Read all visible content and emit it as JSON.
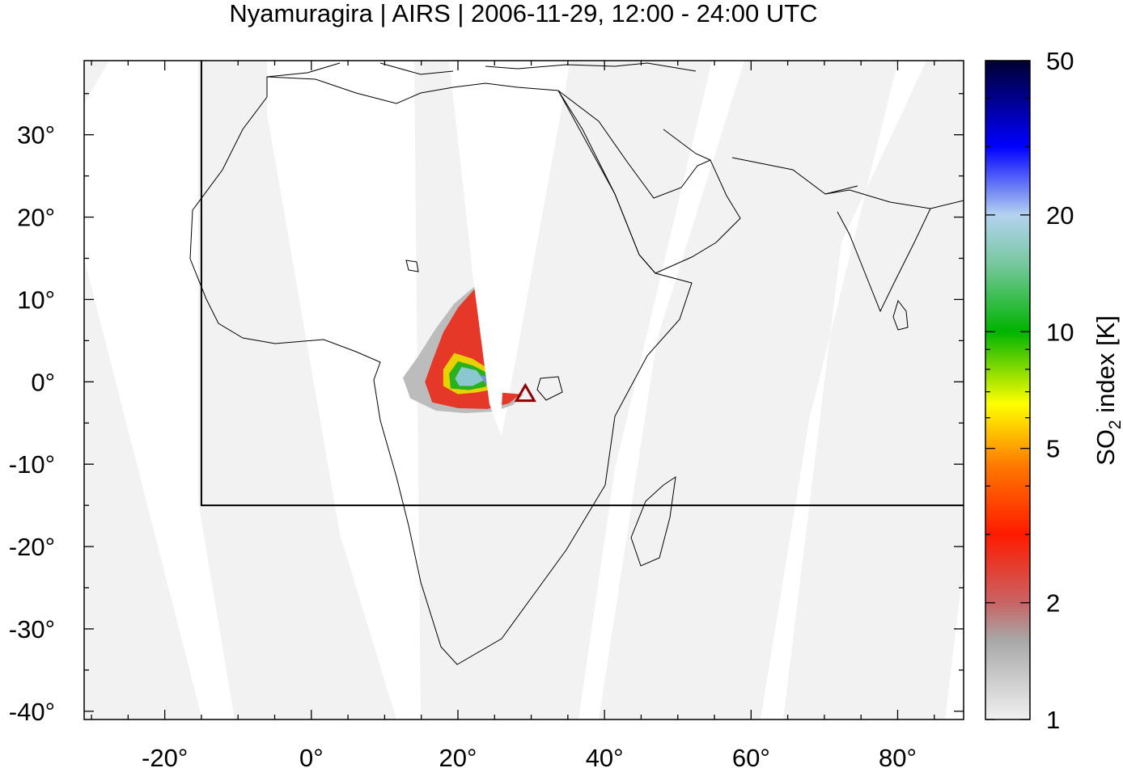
{
  "chart_data": {
    "type": "heatmap",
    "title": "Nyamuragira | AIRS | 2006-11-29, 12:00 - 24:00 UTC",
    "xlim": [
      -31,
      89
    ],
    "ylim": [
      -41,
      39
    ],
    "x_ticks": [
      {
        "value": -20,
        "label": "-20°"
      },
      {
        "value": 0,
        "label": "0°"
      },
      {
        "value": 20,
        "label": "20°"
      },
      {
        "value": 40,
        "label": "40°"
      },
      {
        "value": 60,
        "label": "60°"
      },
      {
        "value": 80,
        "label": "80°"
      }
    ],
    "y_ticks": [
      {
        "value": 30,
        "label": "30°"
      },
      {
        "value": 20,
        "label": "20°"
      },
      {
        "value": 10,
        "label": "10°"
      },
      {
        "value": 0,
        "label": "0°"
      },
      {
        "value": -10,
        "label": "-10°"
      },
      {
        "value": -20,
        "label": "-20°"
      },
      {
        "value": -30,
        "label": "-30°"
      },
      {
        "value": -40,
        "label": "-40°"
      }
    ],
    "volcano": {
      "lon": 29.2,
      "lat": -1.4,
      "marker": "triangle",
      "color": "#8b0000"
    },
    "search_region": {
      "lon_min": -15,
      "lon_max": 89,
      "lat_min": -15,
      "lat_max": 39
    },
    "colorbar": {
      "label_main": "SO",
      "label_sub": "2",
      "label_rest": " index [K]",
      "scale": "log",
      "range": [
        1,
        50
      ],
      "ticks": [
        {
          "value": 1,
          "label": "1"
        },
        {
          "value": 2,
          "label": "2"
        },
        {
          "value": 5,
          "label": "5"
        },
        {
          "value": 10,
          "label": "10"
        },
        {
          "value": 20,
          "label": "20"
        },
        {
          "value": 50,
          "label": "50"
        }
      ],
      "colors": [
        {
          "value": 1,
          "color": "#f0f0f0"
        },
        {
          "value": 1.6,
          "color": "#a8a8a8"
        },
        {
          "value": 2,
          "color": "#c86464"
        },
        {
          "value": 3,
          "color": "#ff1a00"
        },
        {
          "value": 4.5,
          "color": "#ff7800"
        },
        {
          "value": 6.5,
          "color": "#ffff00"
        },
        {
          "value": 10,
          "color": "#00b400"
        },
        {
          "value": 15,
          "color": "#78c8a0"
        },
        {
          "value": 20,
          "color": "#b4d2f0"
        },
        {
          "value": 30,
          "color": "#0000ff"
        },
        {
          "value": 50,
          "color": "#000032"
        }
      ]
    },
    "plume_contours": [
      {
        "so2": 1.5,
        "color": "#b8b8b8",
        "points": [
          [
            23.5,
            12.5
          ],
          [
            19.5,
            9.5
          ],
          [
            17.0,
            6.5
          ],
          [
            14.5,
            3.0
          ],
          [
            12.5,
            0.5
          ],
          [
            13.5,
            -2.0
          ],
          [
            17.0,
            -3.5
          ],
          [
            21.0,
            -3.8
          ],
          [
            25.0,
            -3.6
          ],
          [
            27.5,
            -2.8
          ],
          [
            29.0,
            -1.5
          ],
          [
            24.0,
            -1.5
          ],
          [
            24.0,
            2.0
          ],
          [
            24.5,
            6.0
          ]
        ]
      },
      {
        "so2": 3.0,
        "color": "#e83020",
        "points": [
          [
            23.0,
            12.0
          ],
          [
            20.0,
            9.0
          ],
          [
            18.0,
            6.0
          ],
          [
            16.5,
            2.5
          ],
          [
            15.5,
            0.0
          ],
          [
            16.5,
            -2.5
          ],
          [
            20.0,
            -3.2
          ],
          [
            24.0,
            -3.3
          ],
          [
            27.0,
            -2.6
          ],
          [
            28.5,
            -1.5
          ],
          [
            24.5,
            -1.2
          ],
          [
            24.3,
            3.0
          ],
          [
            24.5,
            8.0
          ]
        ]
      },
      {
        "so2": 7.0,
        "color": "#e8d800",
        "points": [
          [
            19.5,
            3.5
          ],
          [
            18.0,
            1.5
          ],
          [
            18.0,
            -0.5
          ],
          [
            20.0,
            -1.5
          ],
          [
            22.5,
            -1.3
          ],
          [
            24.3,
            -1.0
          ],
          [
            24.3,
            1.5
          ],
          [
            22.0,
            2.8
          ]
        ]
      },
      {
        "so2": 11.0,
        "color": "#20b020",
        "points": [
          [
            20.0,
            2.5
          ],
          [
            18.8,
            1.0
          ],
          [
            19.0,
            -0.8
          ],
          [
            21.5,
            -1.0
          ],
          [
            23.8,
            -0.6
          ],
          [
            24.2,
            1.0
          ],
          [
            22.0,
            2.0
          ]
        ]
      },
      {
        "so2": 18.0,
        "color": "#90c8d8",
        "points": [
          [
            20.5,
            1.8
          ],
          [
            19.6,
            0.4
          ],
          [
            20.2,
            -0.5
          ],
          [
            22.0,
            -0.5
          ],
          [
            23.6,
            0.2
          ],
          [
            22.5,
            1.4
          ]
        ]
      },
      {
        "so2": 25.0,
        "color": "#7890e0",
        "points": [
          [
            23.0,
            0.8
          ],
          [
            23.9,
            -0.4
          ],
          [
            24.3,
            0.6
          ]
        ]
      }
    ]
  }
}
